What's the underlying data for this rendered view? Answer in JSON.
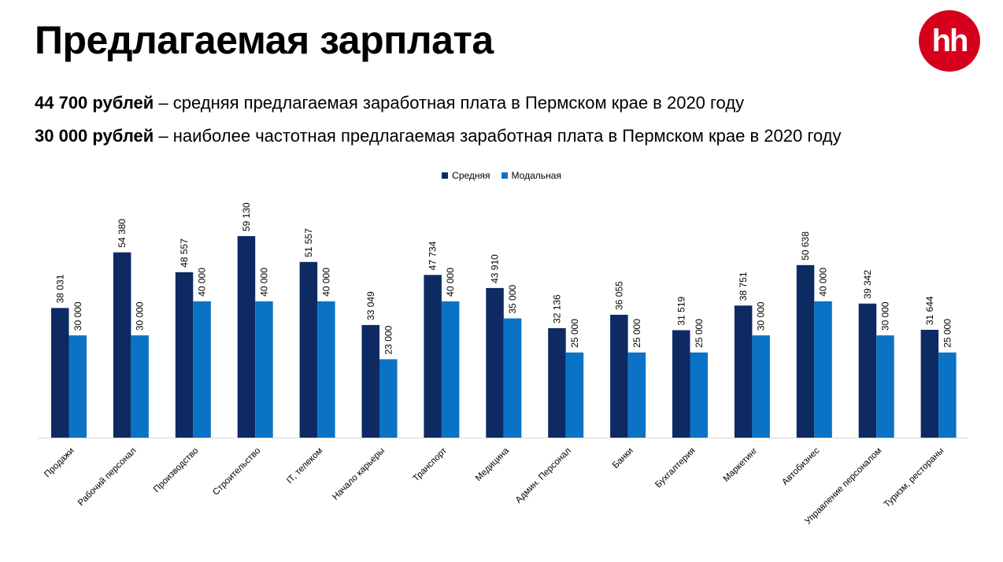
{
  "header": {
    "title": "Предлагаемая зарплата",
    "logo_text": "hh"
  },
  "stats": [
    {
      "bold": "44 700 рублей",
      "text": " – средняя предлагаемая заработная плата в Пермском крае в 2020 году"
    },
    {
      "bold": "30 000 рублей",
      "text": " – наиболее частотная предлагаемая заработная плата в Пермском крае в 2020 году"
    }
  ],
  "colors": {
    "series1": "#0d2a63",
    "series2": "#0a73c6",
    "logo": "#d6001c"
  },
  "chart_data": {
    "type": "bar",
    "categories": [
      "Продажи",
      "Рабочий персонал",
      "Производство",
      "Строительство",
      "IT, телеком",
      "Начало карьеры",
      "Транспорт",
      "Медицина",
      "Админ. Персонал",
      "Банки",
      "Бухгалтерия",
      "Маркетинг",
      "Автобизнес",
      "Управление персоналом",
      "Туризм, рестораны"
    ],
    "series": [
      {
        "name": "Средняя",
        "values": [
          38031,
          54380,
          48557,
          59130,
          51557,
          33049,
          47734,
          43910,
          32136,
          36055,
          31519,
          38751,
          50638,
          39342,
          31644
        ],
        "labels": [
          "38 031",
          "54 380",
          "48 557",
          "59 130",
          "51 557",
          "33 049",
          "47 734",
          "43 910",
          "32 136",
          "36 055",
          "31 519",
          "38 751",
          "50 638",
          "39 342",
          "31 644"
        ]
      },
      {
        "name": "Модальная",
        "values": [
          30000,
          30000,
          40000,
          40000,
          40000,
          23000,
          40000,
          35000,
          25000,
          25000,
          25000,
          30000,
          40000,
          30000,
          25000
        ],
        "labels": [
          "30 000",
          "30 000",
          "40 000",
          "40 000",
          "40 000",
          "23 000",
          "40 000",
          "35 000",
          "25 000",
          "25 000",
          "25 000",
          "30 000",
          "40 000",
          "30 000",
          "25 000"
        ]
      }
    ],
    "ylim": [
      0,
      59130
    ],
    "legend": "top-center",
    "grid": false
  }
}
